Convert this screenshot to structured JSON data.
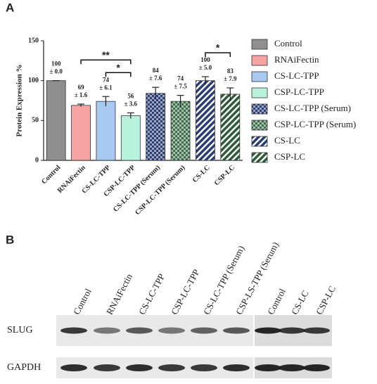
{
  "chart_data": {
    "type": "bar",
    "panel_label": "A",
    "ylabel": "Protein Expression %",
    "categories": [
      "Control",
      "RNAiFectin",
      "CS-LC-TPP",
      "CSP-LC-TPP",
      "CS-LC-TPP (Serum)",
      "CSP-LC-TPP (Serum)",
      "CS-LC",
      "CSP-LC"
    ],
    "values": [
      100,
      69,
      74,
      56,
      84,
      74,
      100,
      83
    ],
    "errors": [
      0.0,
      1.6,
      6.1,
      3.6,
      7.6,
      7.5,
      5.0,
      7.9
    ],
    "error_labels": [
      "± 0.0",
      "± 1.6",
      "± 6.1",
      "± 3.6",
      "± 7.6",
      "± 7.5",
      "± 5.0",
      "± 7.9"
    ],
    "colors": [
      "#8f8f8f",
      "#f5a3a3",
      "#a8c9f2",
      "#b8f2da",
      "#2b3b73",
      "#3f6f4a",
      "#2b3b73",
      "#2f5a3a"
    ],
    "fills": [
      "solid",
      "solid",
      "solid",
      "solid",
      "checker",
      "checker",
      "diagonal",
      "diagonal"
    ],
    "ylim": [
      0,
      150
    ],
    "yticks": [
      0,
      50,
      100,
      150
    ],
    "significance": [
      {
        "from": "RNAiFectin",
        "to": "CSP-LC-TPP",
        "text": "**"
      },
      {
        "from": "CS-LC-TPP",
        "to": "CSP-LC-TPP",
        "text": "*"
      },
      {
        "from": "CS-LC",
        "to": "CSP-LC",
        "text": "*"
      }
    ],
    "legend": "right"
  },
  "blot": {
    "panel_label": "B",
    "lanes": [
      "Control",
      "RNAiFectin",
      "CS-LC-TPP",
      "CSP-LC-TPP",
      "CS-LC-TPP (Serum)",
      "CSP-LS-TPP (Serum)",
      "Control",
      "CS-LC",
      "CSP-LC"
    ],
    "rows": [
      "SLUG",
      "GAPDH"
    ]
  }
}
